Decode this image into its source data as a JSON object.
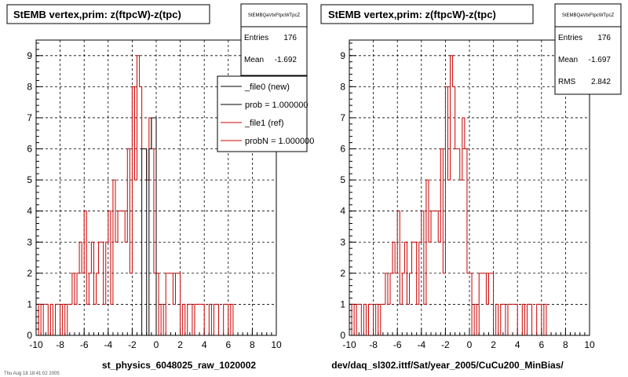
{
  "footer": "Thu Aug 18 18:41:02 2005",
  "legend": {
    "items": [
      {
        "label": "_file0 (new)",
        "color": "#000000"
      },
      {
        "label": "prob = 1.000000",
        "color": "#000000"
      },
      {
        "label": "_file1 (ref)",
        "color": "#cc0000"
      },
      {
        "label": "probN = 1.000000",
        "color": "#cc0000"
      }
    ]
  },
  "chart_data": [
    {
      "type": "histogram",
      "title": "StEMB  vertex,prim: z(ftpcW)-z(tpc)",
      "xlabel": "st_physics_6048025_raw_1020002",
      "xlim": [
        -10,
        10
      ],
      "ylim": [
        0,
        9.5
      ],
      "xticks": [
        -10,
        -8,
        -6,
        -4,
        -2,
        0,
        2,
        4,
        6,
        8,
        10
      ],
      "yticks": [
        0,
        1,
        2,
        3,
        4,
        5,
        6,
        7,
        8,
        9
      ],
      "grid": true,
      "stats": {
        "name": "StEMBQaVtxFtpcWTpcZ",
        "rows": [
          {
            "label": "Entries",
            "value": "176"
          },
          {
            "label": "Mean",
            "value": "-1.692"
          }
        ]
      },
      "series": [
        {
          "name": "_file0 (new)",
          "color": "#000000",
          "bin_width": 0.2,
          "bin_lefts": [
            -1.2,
            -1.0,
            -0.6,
            -0.4,
            -0.2
          ],
          "values": [
            6,
            6,
            6,
            7,
            7
          ]
        },
        {
          "name": "_file1 (ref)",
          "color": "#cc0000",
          "bin_width": 0.2,
          "bin_lefts": [
            -9.8,
            -9.6,
            -9.4,
            -9.2,
            -9.0,
            -8.8,
            -8.6,
            -8.4,
            -8.2,
            -8.0,
            -7.8,
            -7.6,
            -7.4,
            -7.2,
            -7.0,
            -6.8,
            -6.6,
            -6.4,
            -6.2,
            -6.0,
            -5.8,
            -5.6,
            -5.4,
            -5.2,
            -5.0,
            -4.8,
            -4.6,
            -4.4,
            -4.2,
            -4.0,
            -3.8,
            -3.6,
            -3.4,
            -3.2,
            -3.0,
            -2.8,
            -2.6,
            -2.4,
            -2.2,
            -2.0,
            -1.8,
            -1.6,
            -1.4,
            -1.2,
            -1.0,
            -0.8,
            -0.6,
            -0.4,
            -0.2,
            0.0,
            0.2,
            0.4,
            0.6,
            0.8,
            1.0,
            1.2,
            1.4,
            1.6,
            1.8,
            2.0,
            2.2,
            2.4,
            2.6,
            2.8,
            3.0,
            3.2,
            3.4,
            3.6,
            3.8,
            4.0,
            4.2,
            4.4,
            4.6,
            4.8,
            5.0,
            5.2,
            5.4,
            5.6,
            5.8,
            6.0,
            6.2
          ],
          "values": [
            1,
            0,
            1,
            1,
            0,
            1,
            0,
            1,
            1,
            0,
            1,
            0,
            1,
            1,
            2,
            1,
            2,
            3,
            2,
            4,
            1,
            2,
            3,
            1,
            2,
            3,
            3,
            1,
            3,
            4,
            1,
            5,
            3,
            4,
            4,
            4,
            3,
            6,
            2,
            8,
            5,
            9,
            8,
            6,
            6,
            5,
            7,
            6,
            2,
            2,
            0,
            1,
            0,
            2,
            2,
            2,
            1,
            2,
            2,
            0,
            1,
            0,
            1,
            1,
            0,
            1,
            1,
            1,
            1,
            0,
            0,
            1,
            0,
            1,
            1,
            0,
            0,
            1,
            1,
            0,
            1
          ]
        }
      ]
    },
    {
      "type": "histogram",
      "title": "StEMB  vertex,prim: z(ftpcW)-z(tpc)",
      "xlabel": "dev/daq_sl302.ittf/Sat/year_2005/CuCu200_MinBias/",
      "xlim": [
        -10,
        10
      ],
      "ylim": [
        0,
        9.5
      ],
      "xticks": [
        -10,
        -8,
        -6,
        -4,
        -2,
        0,
        2,
        4,
        6,
        8,
        10
      ],
      "yticks": [
        0,
        1,
        2,
        3,
        4,
        5,
        6,
        7,
        8,
        9
      ],
      "grid": true,
      "stats": {
        "name": "StEMBQaVtxFtpcWTpcZ",
        "rows": [
          {
            "label": "Entries",
            "value": "176"
          },
          {
            "label": "Mean",
            "value": "-1.697"
          },
          {
            "label": "RMS",
            "value": "2.842"
          }
        ]
      },
      "series": [
        {
          "name": "_file1 (ref)",
          "color": "#cc0000",
          "bin_width": 0.2,
          "bin_lefts": [
            -9.8,
            -9.6,
            -9.4,
            -9.2,
            -9.0,
            -8.8,
            -8.6,
            -8.4,
            -8.2,
            -8.0,
            -7.8,
            -7.6,
            -7.4,
            -7.2,
            -7.0,
            -6.8,
            -6.6,
            -6.4,
            -6.2,
            -6.0,
            -5.8,
            -5.6,
            -5.4,
            -5.2,
            -5.0,
            -4.8,
            -4.6,
            -4.4,
            -4.2,
            -4.0,
            -3.8,
            -3.6,
            -3.4,
            -3.2,
            -3.0,
            -2.8,
            -2.6,
            -2.4,
            -2.2,
            -2.0,
            -1.8,
            -1.6,
            -1.4,
            -1.2,
            -1.0,
            -0.8,
            -0.6,
            -0.4,
            -0.2,
            0.0,
            0.2,
            0.4,
            0.6,
            0.8,
            1.0,
            1.2,
            1.4,
            1.6,
            1.8,
            2.0,
            2.2,
            2.4,
            2.6,
            2.8,
            3.0,
            3.2,
            3.4,
            3.6,
            3.8,
            4.0,
            4.2,
            4.4,
            4.6,
            4.8,
            5.0,
            5.2,
            5.4,
            5.6,
            5.8,
            6.0,
            6.2
          ],
          "values": [
            1,
            0,
            1,
            1,
            0,
            1,
            0,
            1,
            1,
            0,
            1,
            0,
            1,
            1,
            2,
            1,
            2,
            3,
            2,
            4,
            1,
            2,
            3,
            1,
            2,
            3,
            3,
            1,
            3,
            4,
            1,
            5,
            3,
            4,
            4,
            4,
            3,
            6,
            2,
            8,
            5,
            9,
            8,
            6,
            6,
            5,
            7,
            6,
            2,
            2,
            0,
            1,
            0,
            2,
            2,
            2,
            1,
            2,
            2,
            0,
            1,
            0,
            1,
            1,
            0,
            1,
            1,
            1,
            1,
            0,
            0,
            1,
            0,
            1,
            1,
            0,
            0,
            1,
            1,
            0,
            1
          ]
        }
      ]
    }
  ]
}
